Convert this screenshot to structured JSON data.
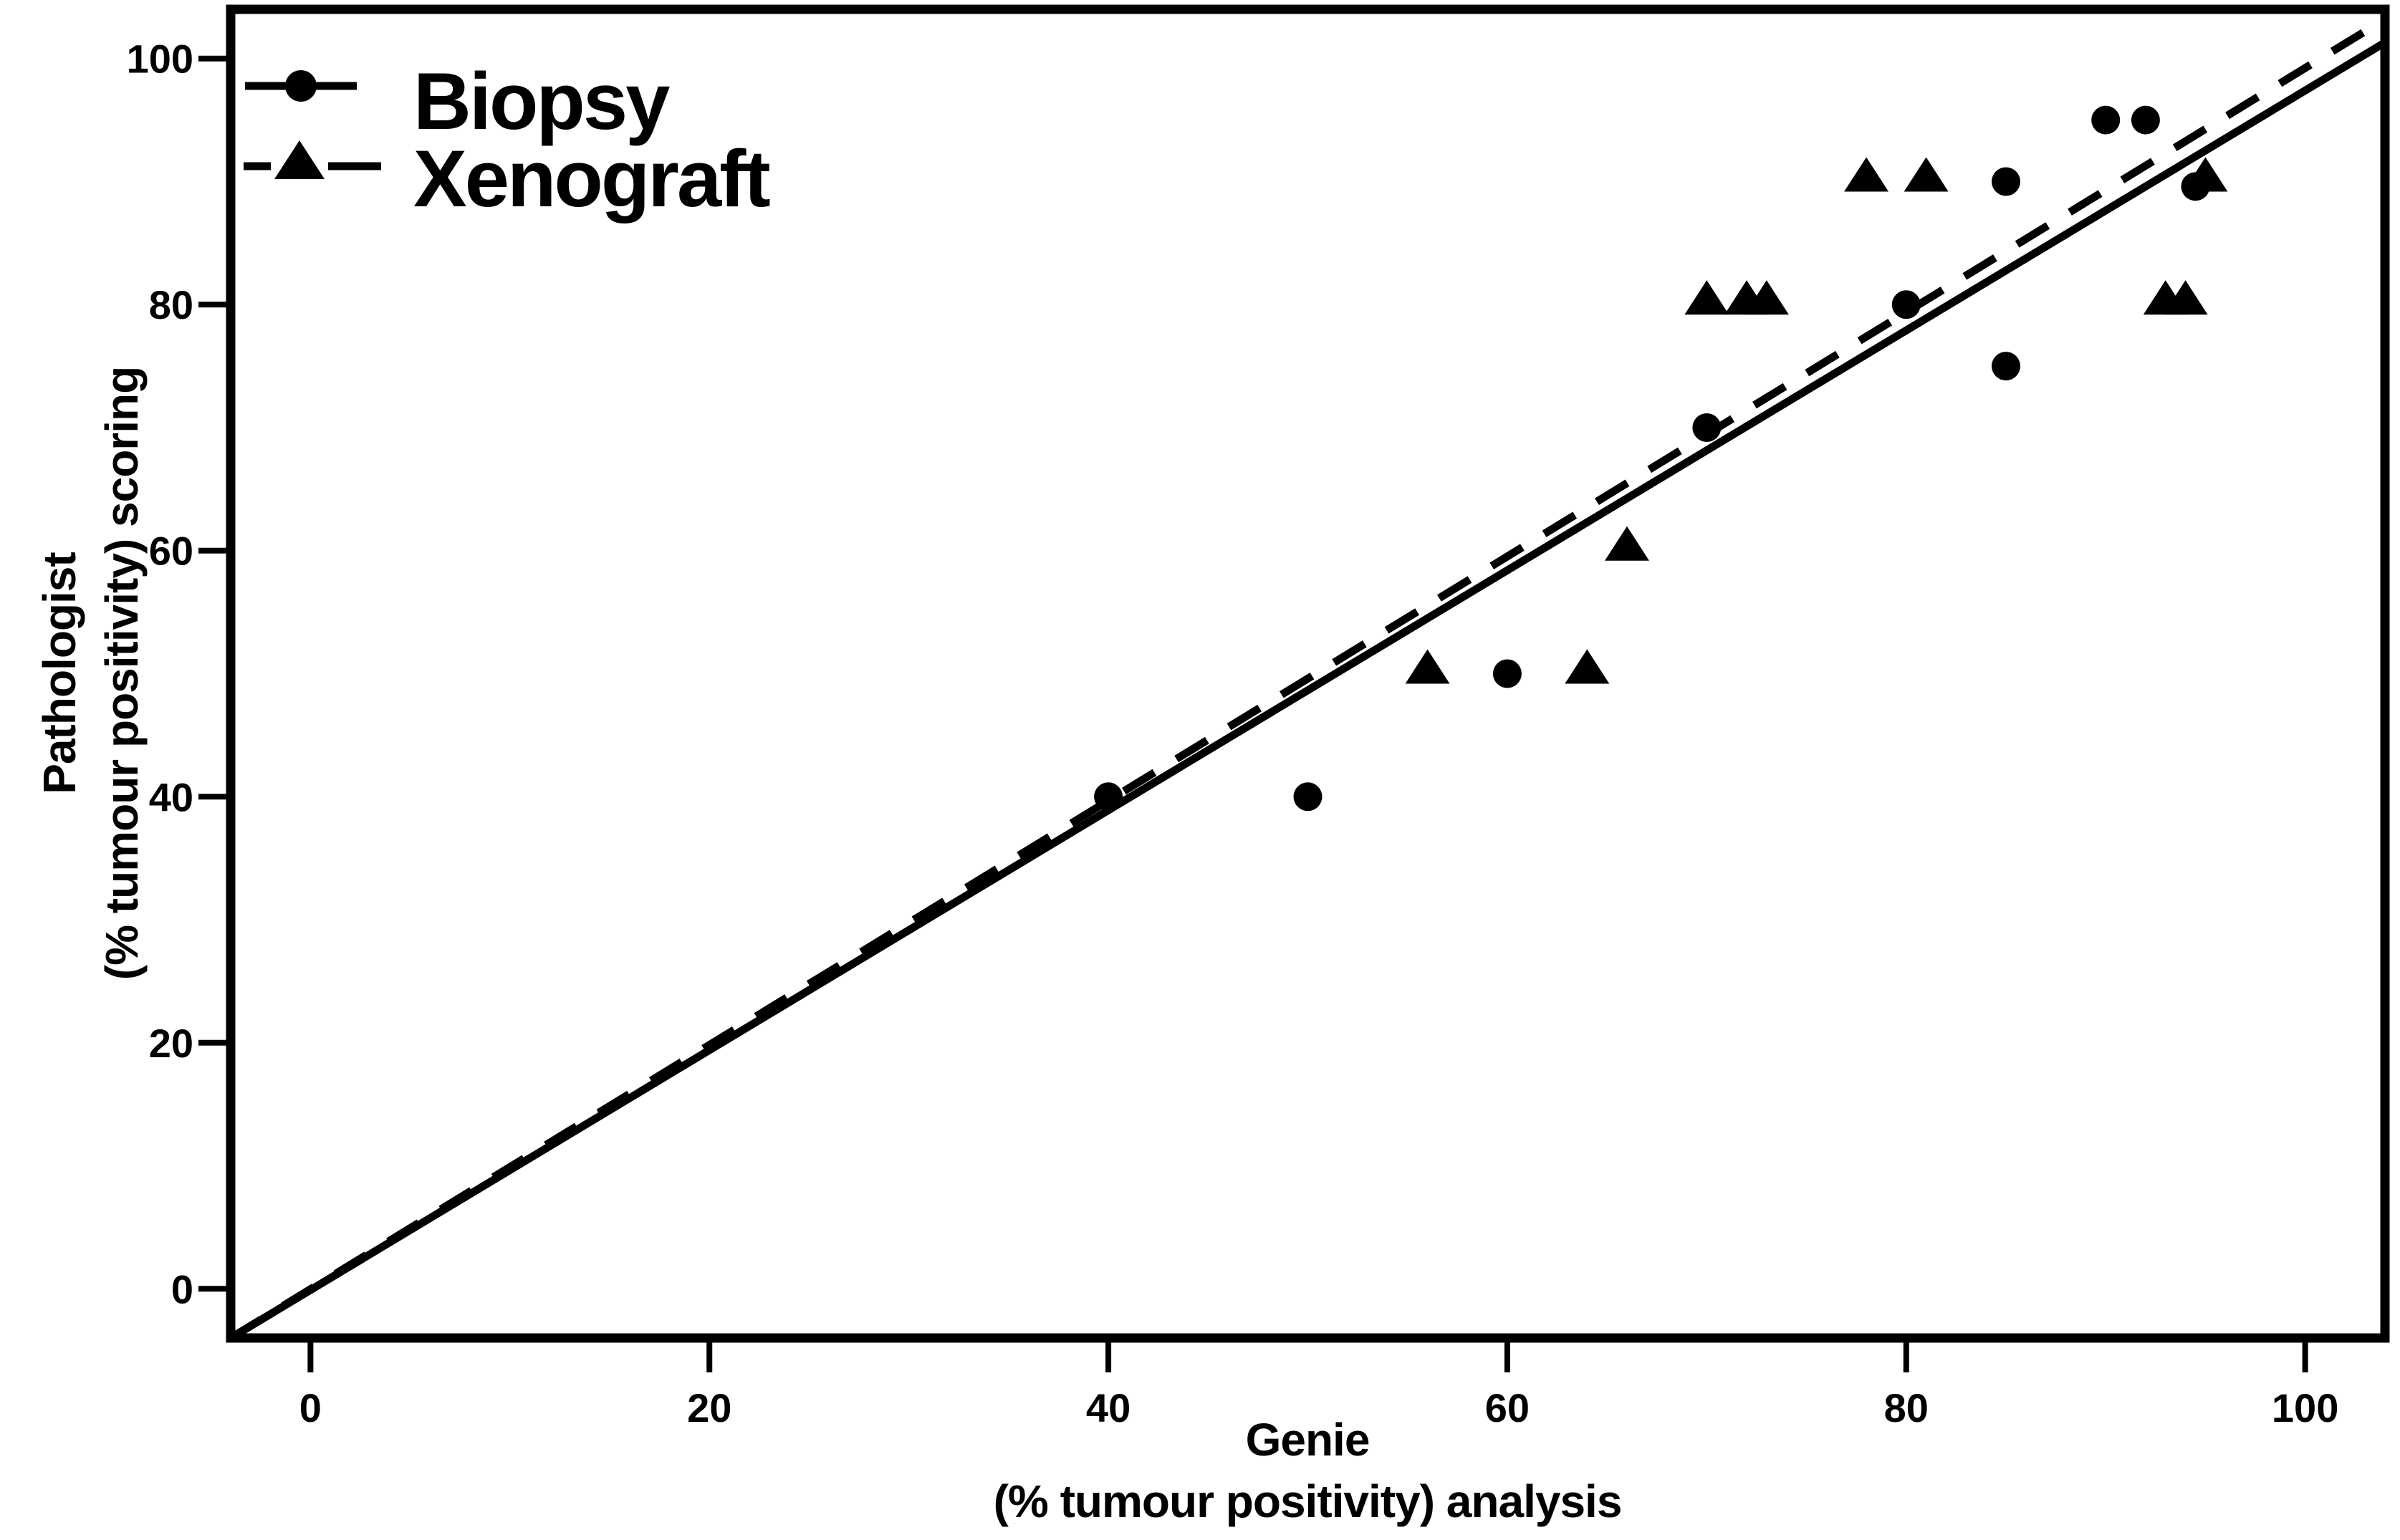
{
  "chart_data": {
    "type": "scatter",
    "title": "",
    "xlabel_line1": "Genie",
    "xlabel_line2": "(% tumour positivity) analysis",
    "ylabel_line1": "Pathologist",
    "ylabel_line2": "(% tumour positivity) scoring",
    "xlim": [
      -4,
      104
    ],
    "ylim": [
      -4,
      104
    ],
    "x_ticks": [
      0,
      20,
      40,
      60,
      80,
      100
    ],
    "y_ticks": [
      0,
      20,
      40,
      60,
      80,
      100
    ],
    "grid": false,
    "legend_position": "top-left",
    "colors": {
      "foreground": "#000000",
      "background": "#ffffff"
    },
    "series": [
      {
        "name": "Biopsy",
        "marker": "circle",
        "line_style": "solid",
        "points": [
          [
            40,
            40
          ],
          [
            50,
            40
          ],
          [
            60,
            50
          ],
          [
            70,
            70
          ],
          [
            80,
            80
          ],
          [
            85,
            75
          ],
          [
            85,
            90
          ],
          [
            90,
            95
          ],
          [
            92,
            95
          ],
          [
            94.5,
            89.6
          ]
        ],
        "fit_line": {
          "x1": -4,
          "y1": -4,
          "x2": 104,
          "y2": 101.3
        }
      },
      {
        "name": "Xenograft",
        "marker": "triangle",
        "line_style": "dashed",
        "points": [
          [
            56,
            50
          ],
          [
            64,
            50
          ],
          [
            66,
            60
          ],
          [
            70,
            80
          ],
          [
            72,
            80
          ],
          [
            73,
            80
          ],
          [
            78,
            90
          ],
          [
            81,
            90
          ],
          [
            93,
            80
          ],
          [
            94,
            80
          ],
          [
            95,
            90
          ]
        ],
        "fit_line": {
          "x1": -4,
          "y1": -4,
          "x2": 104,
          "y2": 103.2
        }
      }
    ]
  },
  "legend": {
    "items": [
      {
        "label": "Biopsy",
        "marker": "circle",
        "line": "solid"
      },
      {
        "label": "Xenograft",
        "marker": "triangle",
        "line": "dashed"
      }
    ]
  }
}
